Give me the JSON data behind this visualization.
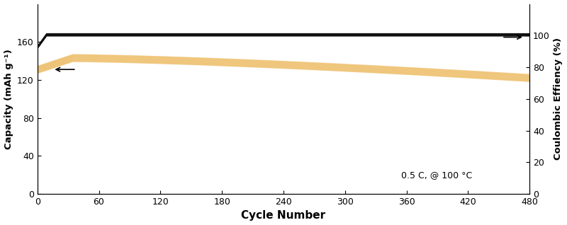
{
  "title": "",
  "xlabel": "Cycle Number",
  "ylabel_left": "Capacity (mAh g⁻¹)",
  "ylabel_right": "Coulombic Effiency (%)",
  "annotation": "0.5 C, @ 100 °C",
  "xlim": [
    0,
    480
  ],
  "ylim_left": [
    0,
    200
  ],
  "ylim_right": [
    0,
    120
  ],
  "xticks": [
    0,
    60,
    120,
    180,
    240,
    300,
    360,
    420,
    480
  ],
  "yticks_left": [
    0,
    40,
    80,
    120,
    160
  ],
  "yticks_right": [
    0,
    20,
    40,
    60,
    80,
    100
  ],
  "capacity_color": "#E8980A",
  "ce_color": "#111111",
  "capacity_start": 131,
  "capacity_mid": 143,
  "capacity_end": 122,
  "ce_mean": 167.5,
  "ce_band": 3.0,
  "capacity_band": 8.0,
  "n_cycles": 480,
  "background_color": "#ffffff",
  "figsize": [
    8.0,
    3.18
  ],
  "dpi": 100
}
